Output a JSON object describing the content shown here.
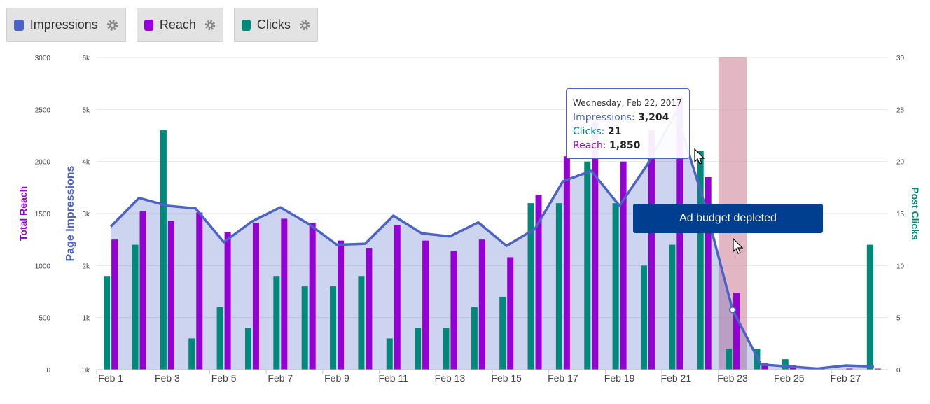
{
  "legend": {
    "items": [
      {
        "label": "Impressions",
        "color": "#4a63c4",
        "icon": "gear-icon"
      },
      {
        "label": "Reach",
        "color": "#9400d3",
        "icon": "gear-icon"
      },
      {
        "label": "Clicks",
        "color": "#00897b",
        "icon": "gear-icon"
      }
    ]
  },
  "tooltip": {
    "date": "Wednesday, Feb 22, 2017",
    "impressions_label": "Impressions",
    "impressions_value": "3,204",
    "clicks_label": "Clicks",
    "clicks_value": "21",
    "reach_label": "Reach",
    "reach_value": "1,850"
  },
  "annotation": {
    "label": "Ad budget depleted"
  },
  "chart_data": {
    "type": "bar",
    "x_tick_labels": [
      "Feb 1",
      "Feb 3",
      "Feb 5",
      "Feb 7",
      "Feb 9",
      "Feb 11",
      "Feb 13",
      "Feb 15",
      "Feb 17",
      "Feb 19",
      "Feb 21",
      "Feb 23",
      "Feb 25",
      "Feb 27"
    ],
    "categories": [
      "Feb 1",
      "Feb 2",
      "Feb 3",
      "Feb 4",
      "Feb 5",
      "Feb 6",
      "Feb 7",
      "Feb 8",
      "Feb 9",
      "Feb 10",
      "Feb 11",
      "Feb 12",
      "Feb 13",
      "Feb 14",
      "Feb 15",
      "Feb 16",
      "Feb 17",
      "Feb 18",
      "Feb 19",
      "Feb 20",
      "Feb 21",
      "Feb 22",
      "Feb 23",
      "Feb 24",
      "Feb 25",
      "Feb 26",
      "Feb 27",
      "Feb 28"
    ],
    "series": [
      {
        "name": "Impressions",
        "type": "area",
        "axis": "left",
        "color": "#4a63c4",
        "values": [
          2750,
          3300,
          3150,
          3100,
          2450,
          2850,
          3120,
          2800,
          2400,
          2420,
          2960,
          2620,
          2560,
          2830,
          2380,
          2700,
          3620,
          3820,
          3150,
          3950,
          4950,
          3204,
          1150,
          100,
          60,
          20,
          80,
          60
        ]
      },
      {
        "name": "Reach",
        "type": "bar",
        "axis": "left2",
        "color": "#9400d3",
        "values": [
          1250,
          1520,
          1430,
          1510,
          1320,
          1410,
          1450,
          1410,
          1240,
          1170,
          1390,
          1240,
          1140,
          1250,
          1080,
          1680,
          2050,
          2380,
          2000,
          2300,
          2620,
          1850,
          740,
          60,
          40,
          20,
          10,
          10
        ]
      },
      {
        "name": "Clicks",
        "type": "bar",
        "axis": "right",
        "color": "#00897b",
        "values": [
          9,
          12,
          23,
          3,
          6,
          4,
          9,
          8,
          8,
          9,
          3,
          4,
          4,
          6,
          7,
          16,
          16,
          20,
          16,
          10,
          12,
          21,
          2,
          2,
          1,
          0,
          0,
          12
        ]
      }
    ],
    "axes": {
      "left2": {
        "label": "Total Reach",
        "ticks": [
          "0",
          "500",
          "1000",
          "1500",
          "2000",
          "2500",
          "3000"
        ],
        "min": 0,
        "max": 3000
      },
      "left": {
        "label": "Page Impressions",
        "ticks": [
          "0k",
          "1k",
          "2k",
          "3k",
          "4k",
          "5k",
          "6k"
        ],
        "min": 0,
        "max": 6000
      },
      "right": {
        "label": "Post Clicks",
        "ticks": [
          "0",
          "5",
          "10",
          "15",
          "20",
          "25",
          "30"
        ],
        "min": 0,
        "max": 30
      }
    },
    "highlight_band": {
      "from": "Feb 23",
      "color": "#d48fa3"
    },
    "grid": true
  }
}
